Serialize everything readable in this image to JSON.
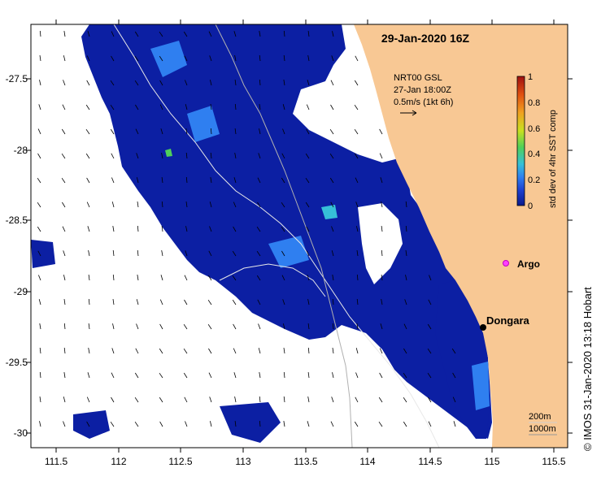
{
  "title": "29-Jan-2020 16Z",
  "credit": "© IMOS 31-Jan-2020 13:18 Hobart",
  "legend": {
    "line1": "NRT00 GSL",
    "line2": "27-Jan 18:00Z",
    "line3": "0.5m/s (1kt 6h)"
  },
  "colorbar": {
    "label": "std dev of 4hr SST comp",
    "ticks": [
      "1",
      "0.8",
      "0.6",
      "0.4",
      "0.2",
      "0"
    ],
    "colors": [
      "#0a1a8c",
      "#1e40d0",
      "#2f7ff0",
      "#36c0d8",
      "#4fd05a",
      "#c8e020",
      "#f0a020",
      "#e05010",
      "#a01010"
    ]
  },
  "places": {
    "argo": "Argo",
    "dongara": "Dongara"
  },
  "contours": {
    "c200": "200m",
    "c1000": "1000m"
  },
  "axes": {
    "x_ticks": [
      "111.5",
      "112",
      "112.5",
      "113",
      "113.5",
      "114",
      "114.5",
      "115",
      "115.5"
    ],
    "y_ticks": [
      "-27.5",
      "-28",
      "-28.5",
      "-29",
      "-29.5",
      "-30"
    ]
  },
  "colors": {
    "land": "#f8c894",
    "sst": "#0a1ea0"
  }
}
